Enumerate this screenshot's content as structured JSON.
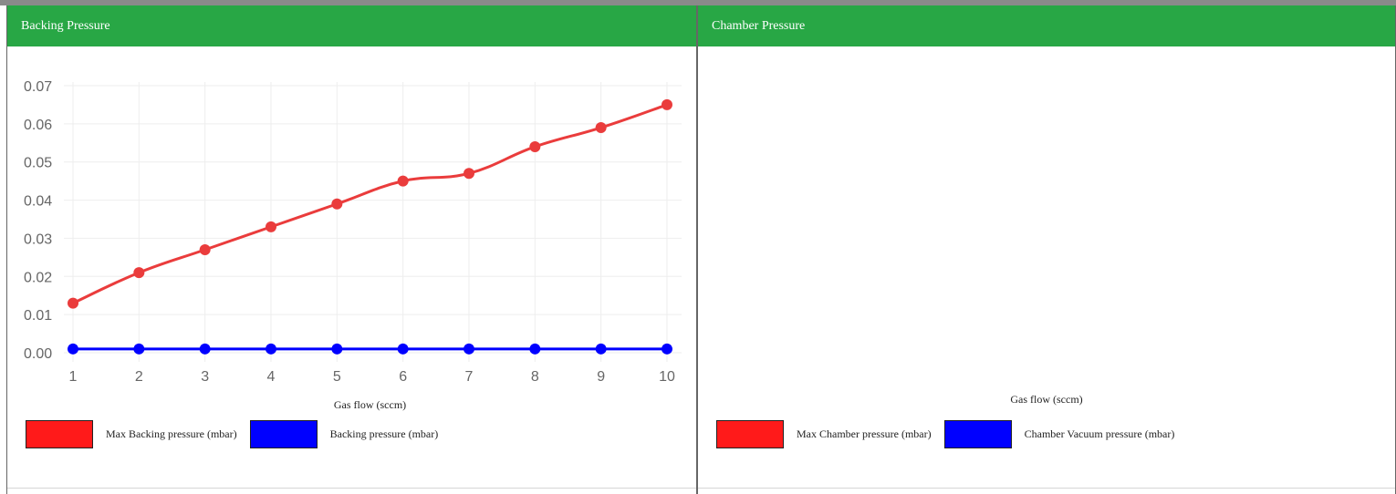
{
  "panels": {
    "backing": {
      "title": "Backing Pressure",
      "legend": [
        {
          "label": "Max Backing pressure (mbar)",
          "color": "#ff1a1a"
        },
        {
          "label": "Backing pressure (mbar)",
          "color": "#0000ff"
        }
      ]
    },
    "chamber": {
      "title": "Chamber Pressure",
      "xlabel": "Gas flow (sccm)",
      "legend": [
        {
          "label": "Max Chamber pressure (mbar)",
          "color": "#ff1a1a"
        },
        {
          "label": "Chamber Vacuum pressure (mbar)",
          "color": "#0000ff"
        }
      ]
    }
  },
  "chart_data": [
    {
      "type": "line",
      "title": "Backing Pressure",
      "xlabel": "Gas flow (sccm)",
      "ylabel": "",
      "x": [
        1,
        2,
        3,
        4,
        5,
        6,
        7,
        8,
        9,
        10
      ],
      "ylim": [
        0,
        0.07
      ],
      "yticks": [
        "0.00",
        "0.01",
        "0.02",
        "0.03",
        "0.04",
        "0.05",
        "0.06",
        "0.07"
      ],
      "grid": true,
      "legend_position": "bottom-left",
      "series": [
        {
          "name": "Max Backing pressure (mbar)",
          "color": "#ea3c3c",
          "values": [
            0.013,
            0.021,
            0.027,
            0.033,
            0.039,
            0.045,
            0.047,
            0.054,
            0.059,
            0.065
          ]
        },
        {
          "name": "Backing pressure (mbar)",
          "color": "#0000ff",
          "values": [
            0.001,
            0.001,
            0.001,
            0.001,
            0.001,
            0.001,
            0.001,
            0.001,
            0.001,
            0.001
          ]
        }
      ]
    },
    {
      "type": "line",
      "title": "Chamber Pressure",
      "xlabel": "Gas flow (sccm)",
      "x": [],
      "series": [
        {
          "name": "Max Chamber pressure (mbar)",
          "color": "#ff1a1a",
          "values": []
        },
        {
          "name": "Chamber Vacuum pressure (mbar)",
          "color": "#0000ff",
          "values": []
        }
      ]
    }
  ]
}
